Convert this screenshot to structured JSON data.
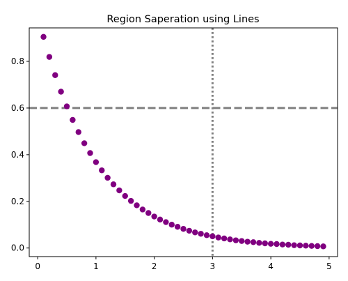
{
  "chart_data": {
    "type": "scatter",
    "title": "Region Saperation using Lines",
    "xlabel": "",
    "ylabel": "",
    "xlim": [
      -0.145,
      5.145
    ],
    "ylim": [
      -0.0368,
      0.9435
    ],
    "xticks": [
      0,
      1,
      2,
      3,
      4,
      5
    ],
    "xtick_labels": [
      "0",
      "1",
      "2",
      "3",
      "4",
      "5"
    ],
    "yticks": [
      0.0,
      0.2,
      0.4,
      0.6,
      0.8
    ],
    "ytick_labels": [
      "0.0",
      "0.2",
      "0.4",
      "0.6",
      "0.8"
    ],
    "grid": false,
    "series": [
      {
        "color": "#800080",
        "marker": "circle",
        "x": [
          0.1,
          0.2,
          0.3,
          0.4,
          0.5,
          0.6,
          0.7,
          0.8,
          0.9,
          1.0,
          1.1,
          1.2,
          1.3,
          1.4,
          1.5,
          1.6,
          1.7,
          1.8,
          1.9,
          2.0,
          2.1,
          2.2,
          2.3,
          2.4,
          2.5,
          2.6,
          2.7,
          2.8,
          2.9,
          3.0,
          3.1,
          3.2,
          3.3,
          3.4,
          3.5,
          3.6,
          3.7,
          3.8,
          3.9,
          4.0,
          4.1,
          4.2,
          4.3,
          4.4,
          4.5,
          4.6,
          4.7,
          4.8,
          4.9
        ],
        "y": [
          0.905,
          0.819,
          0.741,
          0.67,
          0.607,
          0.549,
          0.497,
          0.449,
          0.407,
          0.368,
          0.333,
          0.301,
          0.273,
          0.247,
          0.223,
          0.202,
          0.183,
          0.165,
          0.15,
          0.135,
          0.122,
          0.111,
          0.1,
          0.091,
          0.082,
          0.074,
          0.067,
          0.061,
          0.055,
          0.05,
          0.045,
          0.041,
          0.037,
          0.033,
          0.03,
          0.027,
          0.025,
          0.022,
          0.02,
          0.018,
          0.017,
          0.015,
          0.014,
          0.012,
          0.011,
          0.01,
          0.009,
          0.008,
          0.007
        ]
      }
    ],
    "reference_lines": [
      {
        "orientation": "horizontal",
        "value": 0.6,
        "style": "dashed",
        "color": "#808080"
      },
      {
        "orientation": "vertical",
        "value": 3,
        "style": "dotted",
        "color": "#808080"
      }
    ]
  }
}
